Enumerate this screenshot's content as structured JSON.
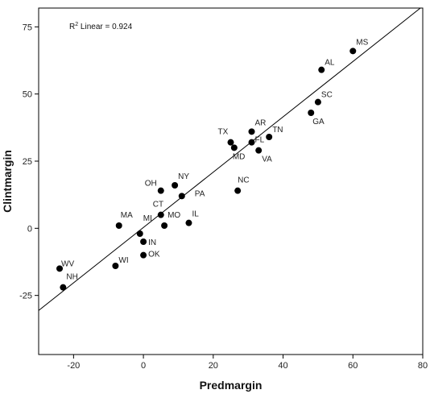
{
  "chart_data": {
    "type": "scatter",
    "title": "",
    "xlabel": "Predmargin",
    "ylabel": "Clintmargin",
    "xlim": [
      -30,
      80
    ],
    "ylim": [
      -47,
      82
    ],
    "x_ticks": [
      -20,
      0,
      20,
      40,
      60,
      80
    ],
    "y_ticks": [
      -25,
      0,
      25,
      50,
      75
    ],
    "grid": false,
    "legend": "none",
    "annotation": {
      "prefix": "R",
      "superscript": "2",
      "suffix": " Linear = 0.924"
    },
    "fit_line": {
      "slope": 1.03,
      "intercept": 0.3,
      "x_range": [
        -30,
        80
      ]
    },
    "colors": {
      "point": "#000000",
      "line": "#000000",
      "frame": "#000000"
    },
    "points": [
      {
        "label": "MS",
        "x": 60,
        "y": 66
      },
      {
        "label": "AL",
        "x": 51,
        "y": 59
      },
      {
        "label": "SC",
        "x": 50,
        "y": 47
      },
      {
        "label": "GA",
        "x": 48,
        "y": 43
      },
      {
        "label": "TN",
        "x": 36,
        "y": 34
      },
      {
        "label": "AR",
        "x": 31,
        "y": 36
      },
      {
        "label": "FL",
        "x": 31,
        "y": 32
      },
      {
        "label": "TX",
        "x": 25,
        "y": 32
      },
      {
        "label": "MD",
        "x": 26,
        "y": 30
      },
      {
        "label": "VA",
        "x": 33,
        "y": 29
      },
      {
        "label": "NC",
        "x": 27,
        "y": 14
      },
      {
        "label": "NY",
        "x": 9,
        "y": 16
      },
      {
        "label": "OH",
        "x": 5,
        "y": 14
      },
      {
        "label": "PA",
        "x": 11,
        "y": 12
      },
      {
        "label": "CT",
        "x": 5,
        "y": 5
      },
      {
        "label": "MO",
        "x": 6,
        "y": 1
      },
      {
        "label": "IL",
        "x": 13,
        "y": 2
      },
      {
        "label": "MA",
        "x": -7,
        "y": 1
      },
      {
        "label": "MI",
        "x": -1,
        "y": -2
      },
      {
        "label": "IN",
        "x": 0,
        "y": -5
      },
      {
        "label": "OK",
        "x": 0,
        "y": -10
      },
      {
        "label": "WI",
        "x": -8,
        "y": -14
      },
      {
        "label": "WV",
        "x": -24,
        "y": -15
      },
      {
        "label": "NH",
        "x": -23,
        "y": -22
      }
    ]
  }
}
